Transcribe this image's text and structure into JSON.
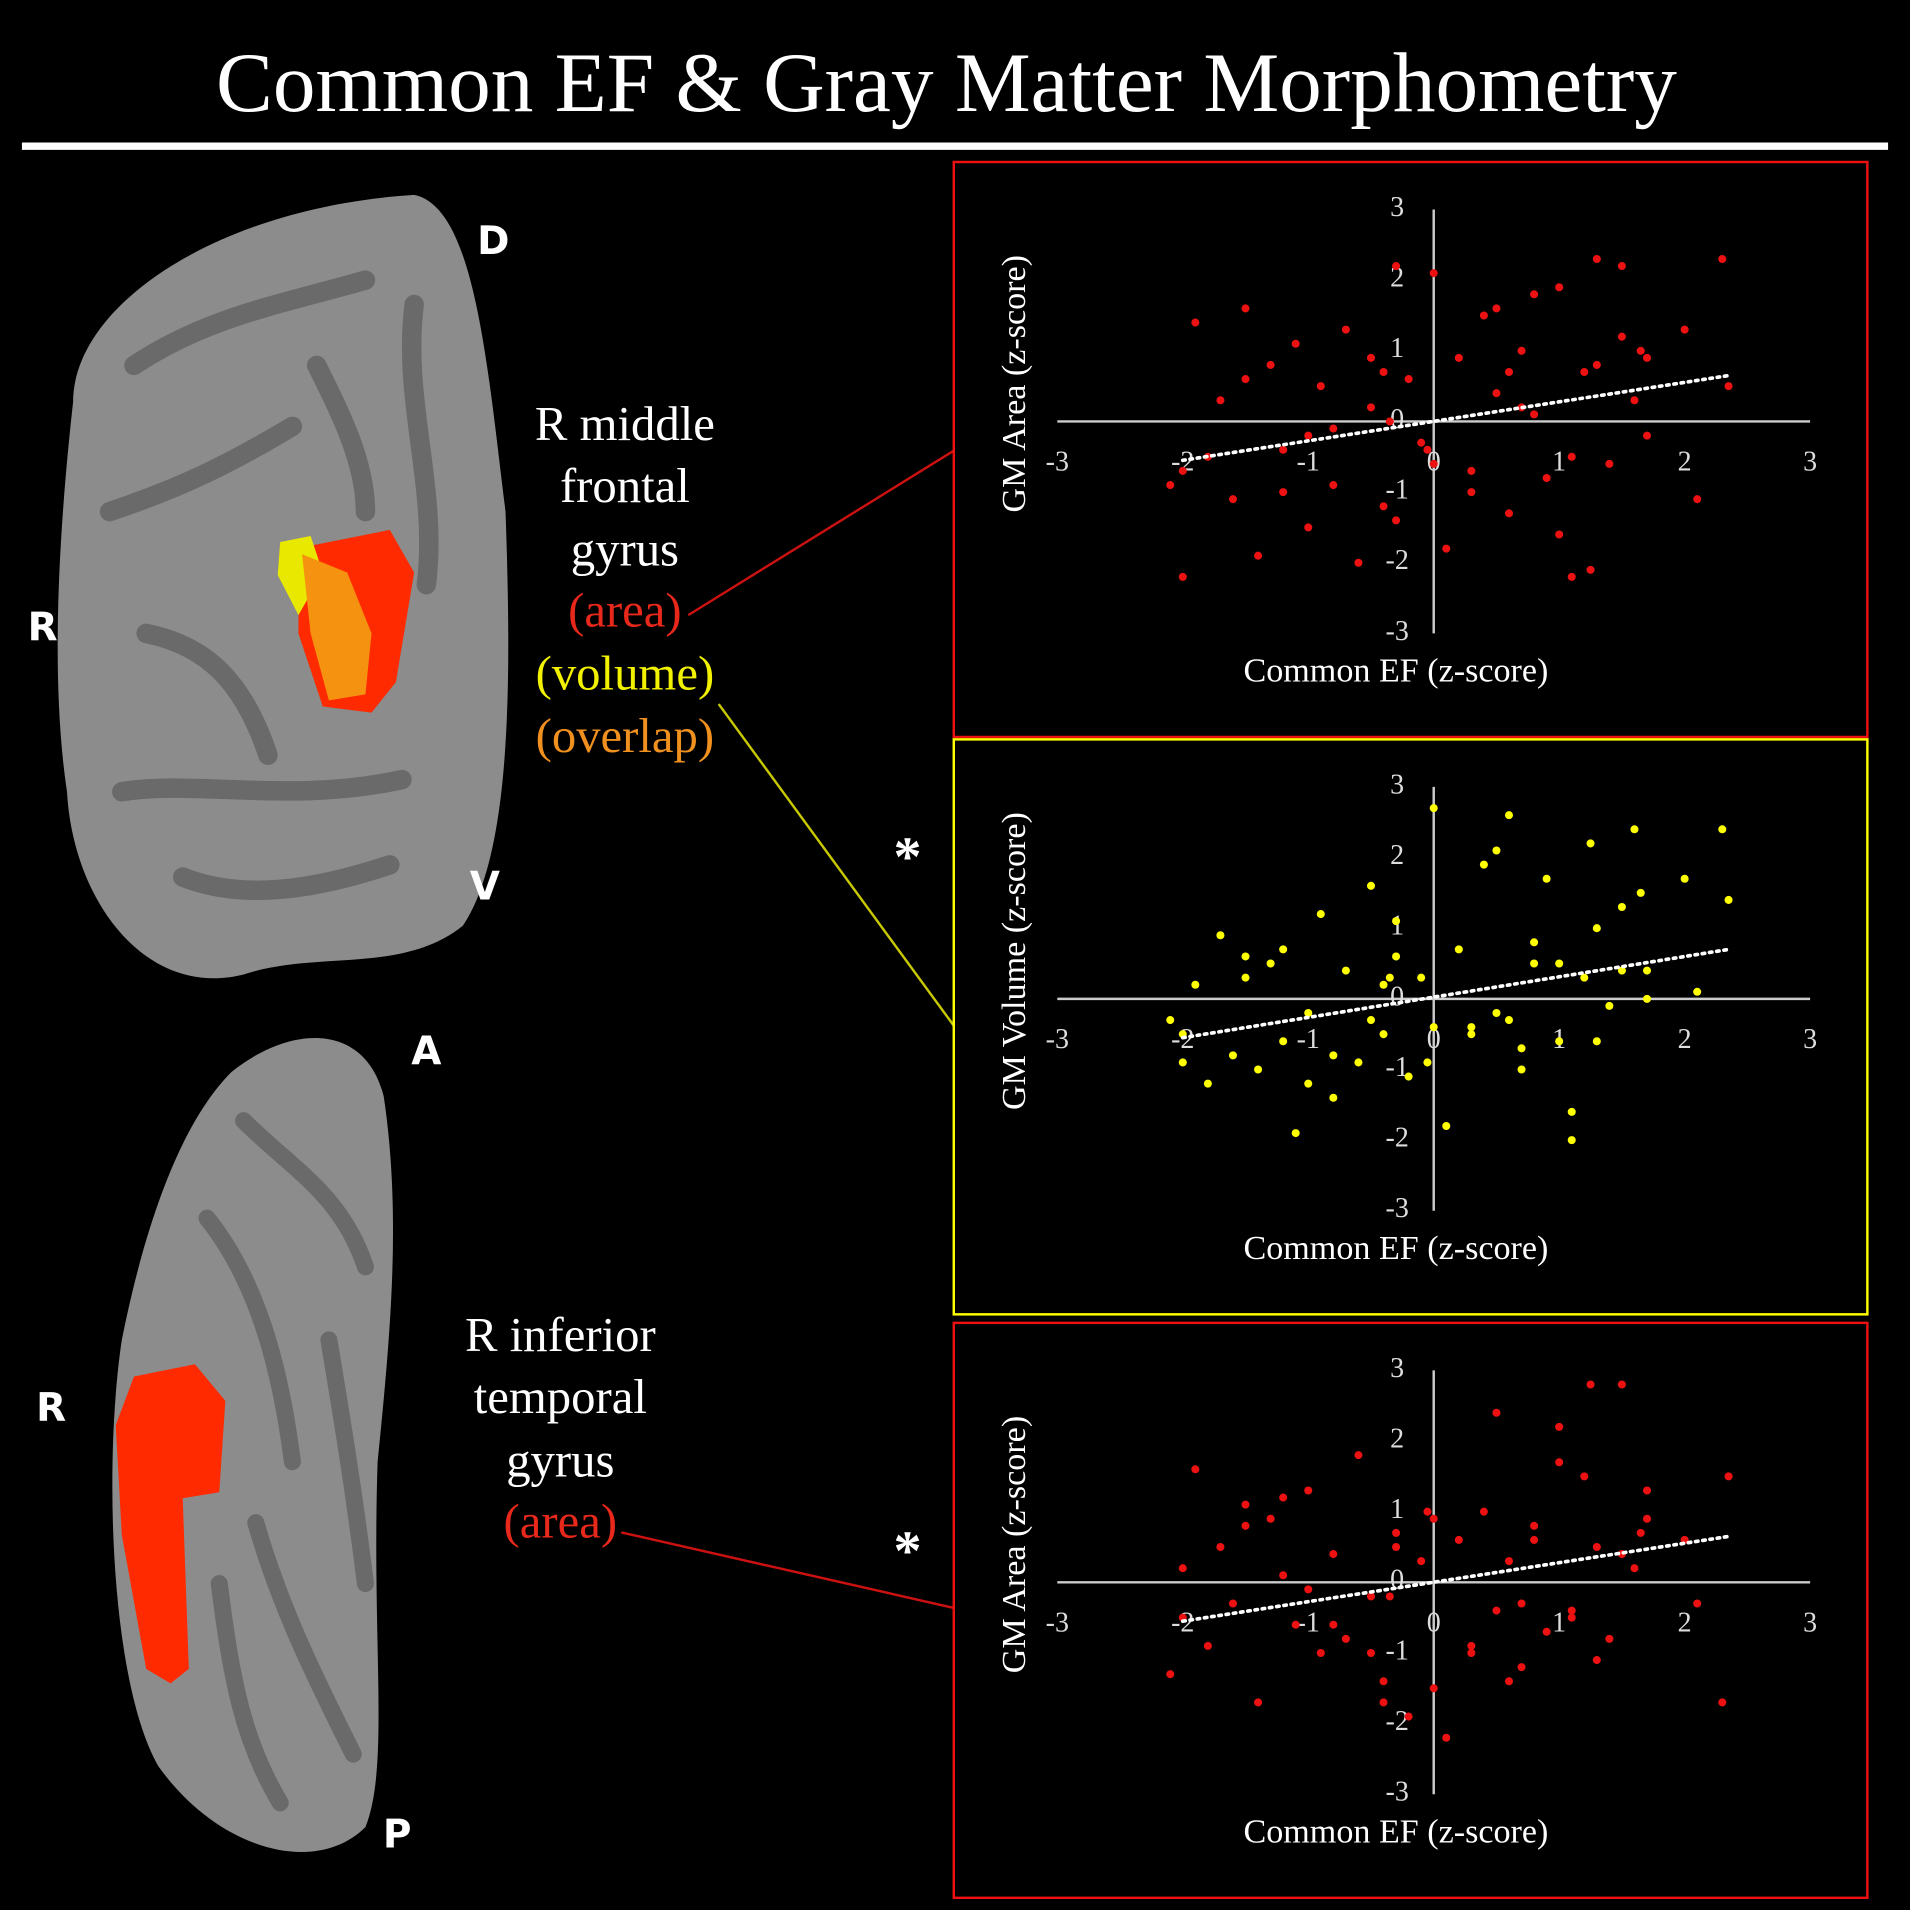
{
  "title": "Common EF & Gray Matter Morphometry",
  "brain_top": {
    "dorsal": "D",
    "ventral": "V",
    "side": "R"
  },
  "brain_bottom": {
    "anterior": "A",
    "posterior": "P",
    "side": "R"
  },
  "region_1": {
    "lines": [
      "R middle",
      "frontal",
      "gyrus"
    ],
    "area": "(area)",
    "volume": "(volume)",
    "overlap": "(overlap)"
  },
  "region_2": {
    "lines": [
      "R inferior",
      "temporal",
      "gyrus"
    ],
    "area": "(area)"
  },
  "significance": [
    "*",
    "*"
  ],
  "chart_data": [
    {
      "type": "scatter",
      "x_label": "Common EF (z-score)",
      "y_label": "GM Area (z-score)",
      "color": "#ee1111",
      "xlim": [
        -3,
        3
      ],
      "ylim": [
        -3,
        3
      ],
      "xticks": [
        -3,
        -2,
        -1,
        0,
        1,
        2,
        3
      ],
      "yticks": [
        -3,
        -2,
        -1,
        0,
        1,
        2,
        3
      ],
      "x": [
        -2.0,
        -2.1,
        -1.9,
        -1.8,
        -1.7,
        -1.6,
        -1.5,
        -1.4,
        -1.3,
        -1.2,
        -1.1,
        -1.0,
        -0.9,
        -0.8,
        -0.7,
        -0.6,
        -0.5,
        -0.4,
        -0.3,
        -0.2,
        -0.1,
        0.0,
        0.1,
        0.2,
        0.3,
        0.4,
        0.5,
        0.6,
        0.7,
        0.8,
        0.9,
        1.0,
        1.1,
        1.2,
        1.3,
        1.4,
        1.5,
        1.6,
        1.7,
        2.0,
        2.3,
        2.35,
        -2.0,
        -1.5,
        -1.0,
        -0.5,
        -0.3,
        0.0,
        0.5,
        0.7,
        1.0,
        1.3,
        1.5,
        -1.2,
        -0.8,
        -0.4,
        0.3,
        0.8,
        1.1,
        1.7,
        -0.35,
        -0.05,
        0.6,
        1.25,
        1.65,
        2.1
      ],
      "values": [
        -2.2,
        -0.9,
        1.4,
        -0.5,
        0.3,
        -1.1,
        1.6,
        -1.9,
        0.8,
        -0.4,
        1.1,
        -1.5,
        0.5,
        -0.9,
        1.3,
        -2.0,
        0.2,
        -1.2,
        2.2,
        0.6,
        -0.3,
        2.1,
        -1.8,
        0.9,
        -0.7,
        1.5,
        0.4,
        -1.3,
        1.0,
        0.1,
        -0.8,
        1.9,
        -2.2,
        0.7,
        2.3,
        -0.6,
        1.2,
        0.3,
        -0.2,
        1.3,
        2.3,
        0.5,
        -0.7,
        0.6,
        -0.2,
        0.9,
        -1.4,
        -0.6,
        1.6,
        0.2,
        -1.6,
        0.8,
        2.2,
        -1.0,
        -0.1,
        0.7,
        -1.0,
        1.8,
        -0.5,
        0.9,
        0.0,
        -0.4,
        0.7,
        -2.1,
        1.0,
        -1.1
      ],
      "trendline": {
        "x": [
          -2.0,
          2.35
        ],
        "values": [
          -0.55,
          0.65
        ]
      }
    },
    {
      "type": "scatter",
      "x_label": "Common EF (z-score)",
      "y_label": "GM Volume (z-score)",
      "color": "#ffff00",
      "xlim": [
        -3,
        3
      ],
      "ylim": [
        -3,
        3
      ],
      "xticks": [
        -3,
        -2,
        -1,
        0,
        1,
        2,
        3
      ],
      "yticks": [
        -3,
        -2,
        -1,
        0,
        1,
        2,
        3
      ],
      "x": [
        -2.0,
        -2.1,
        -1.9,
        -1.8,
        -1.7,
        -1.6,
        -1.5,
        -1.4,
        -1.3,
        -1.2,
        -1.1,
        -1.0,
        -0.9,
        -0.8,
        -0.7,
        -0.6,
        -0.5,
        -0.4,
        -0.3,
        -0.2,
        -0.1,
        0.0,
        0.1,
        0.2,
        0.3,
        0.4,
        0.5,
        0.6,
        0.7,
        0.8,
        0.9,
        1.0,
        1.1,
        1.2,
        1.3,
        1.4,
        1.5,
        1.6,
        1.7,
        2.0,
        2.3,
        2.35,
        -2.0,
        -1.5,
        -1.0,
        -0.5,
        -0.3,
        0.0,
        0.5,
        0.7,
        1.0,
        1.3,
        1.5,
        -1.2,
        -0.8,
        -0.4,
        0.3,
        0.8,
        1.1,
        1.7,
        -0.35,
        -0.05,
        0.6,
        1.25,
        1.65,
        2.1
      ],
      "values": [
        -0.5,
        -0.3,
        0.2,
        -1.2,
        0.9,
        -0.8,
        0.3,
        -1.0,
        0.5,
        -0.6,
        -1.9,
        -0.2,
        1.2,
        -1.4,
        0.4,
        -0.9,
        1.6,
        -0.5,
        0.6,
        -1.1,
        0.3,
        2.7,
        -1.8,
        0.7,
        -0.4,
        1.9,
        -0.2,
        2.6,
        -0.7,
        0.5,
        1.7,
        -0.6,
        -2.0,
        0.3,
        1.0,
        -0.1,
        0.4,
        2.4,
        0.0,
        1.7,
        2.4,
        1.4,
        -0.9,
        0.6,
        -1.2,
        -0.3,
        1.1,
        -0.4,
        2.1,
        -1.0,
        0.5,
        -0.6,
        1.3,
        0.7,
        -0.8,
        0.2,
        -0.5,
        0.8,
        -1.6,
        0.4,
        0.3,
        -0.9,
        -0.3,
        2.2,
        1.5,
        0.1
      ],
      "trendline": {
        "x": [
          -2.0,
          2.35
        ],
        "values": [
          -0.55,
          0.7
        ]
      }
    },
    {
      "type": "scatter",
      "x_label": "Common EF (z-score)",
      "y_label": "GM Area (z-score)",
      "color": "#ee1111",
      "xlim": [
        -3,
        3
      ],
      "ylim": [
        -3,
        3
      ],
      "xticks": [
        -3,
        -2,
        -1,
        0,
        1,
        2,
        3
      ],
      "yticks": [
        -3,
        -2,
        -1,
        0,
        1,
        2,
        3
      ],
      "x": [
        -2.0,
        -2.1,
        -1.9,
        -1.8,
        -1.7,
        -1.6,
        -1.5,
        -1.4,
        -1.3,
        -1.2,
        -1.1,
        -1.0,
        -0.9,
        -0.8,
        -0.7,
        -0.6,
        -0.5,
        -0.4,
        -0.3,
        -0.2,
        -0.1,
        0.0,
        0.1,
        0.2,
        0.3,
        0.4,
        0.5,
        0.6,
        0.7,
        0.8,
        0.9,
        1.0,
        1.1,
        1.2,
        1.3,
        1.4,
        1.5,
        1.6,
        1.7,
        2.0,
        2.3,
        2.35,
        -2.0,
        -1.5,
        -1.0,
        -0.5,
        -0.3,
        0.0,
        0.5,
        0.7,
        1.0,
        1.3,
        1.5,
        -1.2,
        -0.8,
        -0.4,
        0.3,
        0.8,
        1.1,
        1.7,
        -0.35,
        -0.05,
        0.6,
        1.25,
        1.65,
        2.1
      ],
      "values": [
        0.2,
        -1.3,
        1.6,
        -0.9,
        0.5,
        -0.3,
        1.1,
        -1.7,
        0.9,
        0.1,
        -0.6,
        1.3,
        -1.0,
        0.4,
        -0.8,
        1.8,
        -0.2,
        -1.4,
        0.7,
        -1.9,
        0.3,
        0.9,
        -2.2,
        0.6,
        -1.0,
        1.0,
        -0.4,
        0.3,
        -1.2,
        0.8,
        -0.7,
        2.2,
        -0.5,
        1.5,
        0.5,
        -0.8,
        2.8,
        0.2,
        0.9,
        0.6,
        -1.7,
        1.5,
        -0.5,
        0.8,
        -0.1,
        -1.0,
        0.5,
        -1.5,
        2.4,
        -0.3,
        1.7,
        -1.1,
        0.4,
        1.2,
        -0.6,
        -1.7,
        -0.9,
        0.6,
        -0.4,
        1.3,
        -0.2,
        1.0,
        -1.4,
        2.8,
        0.7,
        -0.3
      ],
      "trendline": {
        "x": [
          -2.0,
          2.35
        ],
        "values": [
          -0.55,
          0.65
        ]
      }
    }
  ]
}
